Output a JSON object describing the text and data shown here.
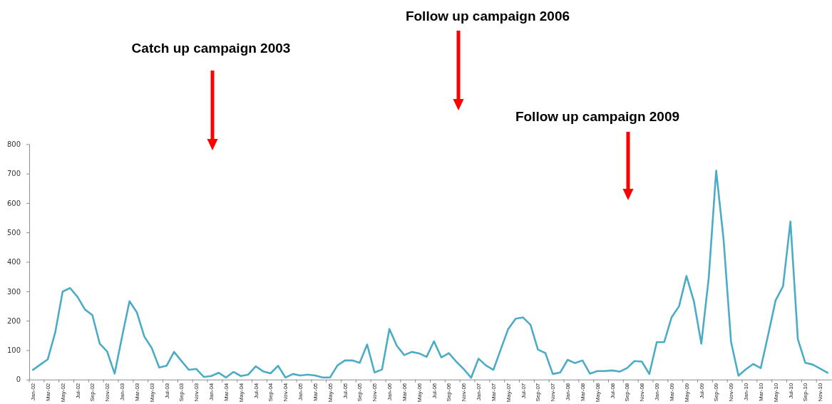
{
  "chart_data": {
    "type": "line",
    "categories": [
      "Jan-02",
      null,
      "Mar-02",
      null,
      "May-02",
      null,
      "Jul-02",
      null,
      "Sep-02",
      null,
      "Nov-02",
      null,
      "Jan-03",
      null,
      "Mar-03",
      null,
      "May-03",
      null,
      "Jul-03",
      null,
      "Sep-03",
      null,
      "Nov-03",
      null,
      "Jan-04",
      null,
      "Mar-04",
      null,
      "May-04",
      null,
      "Jul-04",
      null,
      "Sep-04",
      null,
      "Nov-04",
      null,
      "Jan-05",
      null,
      "Mar-05",
      null,
      "May-05",
      null,
      "Jul-05",
      null,
      "Sep-05",
      null,
      "Nov-05",
      null,
      "Jan-06",
      null,
      "Mar-06",
      null,
      "May-06",
      null,
      "Jul-06",
      null,
      "Sep-06",
      null,
      "Nov-06",
      null,
      "Jan-07",
      null,
      "Mar-07",
      null,
      "May-07",
      null,
      "Jul-07",
      null,
      "Sep-07",
      null,
      "Nov-07",
      null,
      "Jan-08",
      null,
      "Mar-08",
      null,
      "May-08",
      null,
      "Jul-08",
      null,
      "Sep-08",
      null,
      "Nov-08",
      null,
      "Jan-09",
      null,
      "Mar-09",
      null,
      "May-09",
      null,
      "Jul-09",
      null,
      "Sep-09",
      null,
      "Nov-09",
      null,
      "Jan-10",
      null,
      "Mar-10",
      null,
      "May-10",
      null,
      "Jul-10",
      null,
      "Sep-10",
      null,
      "Nov-10",
      null
    ],
    "series": [
      {
        "color": "#4bacc6",
        "values": [
          33,
          51,
          69,
          160,
          299,
          311,
          281,
          238,
          219,
          122,
          95,
          20,
          146,
          266,
          228,
          146,
          107,
          41,
          47,
          94,
          63,
          33,
          36,
          9,
          12,
          23,
          7,
          26,
          12,
          17,
          45,
          28,
          21,
          47,
          7,
          19,
          14,
          17,
          14,
          7,
          7,
          48,
          65,
          65,
          57,
          119,
          24,
          34,
          172,
          115,
          83,
          94,
          89,
          77,
          130,
          75,
          90,
          61,
          36,
          6,
          71,
          48,
          33,
          103,
          172,
          207,
          211,
          186,
          102,
          90,
          19,
          24,
          67,
          56,
          65,
          20,
          29,
          29,
          31,
          27,
          39,
          63,
          61,
          19,
          127,
          127,
          212,
          249,
          352,
          266,
          122,
          346,
          710,
          475,
          129,
          13,
          35,
          53,
          39,
          152,
          269,
          317,
          537,
          137,
          57,
          51,
          37,
          23
        ]
      }
    ],
    "ylim": [
      0,
      800
    ],
    "yticks": [
      0,
      100,
      200,
      300,
      400,
      500,
      600,
      700,
      800
    ],
    "annotations": [
      "Catch up campaign 2003",
      "Follow up campaign 2006",
      "Follow up campaign 2009"
    ]
  }
}
